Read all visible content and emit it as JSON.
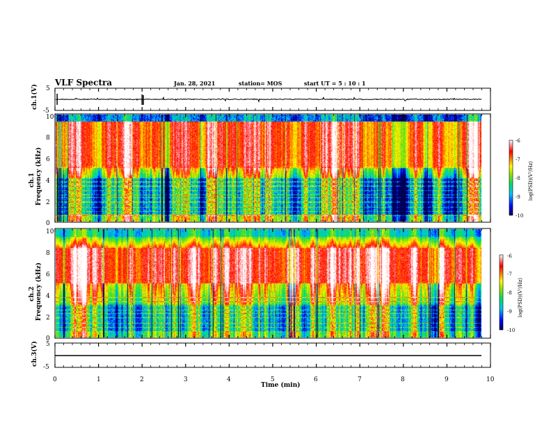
{
  "header": {
    "title": "VLF Spectra",
    "date": "Jan. 28, 2021",
    "station": "station= MOS",
    "start_ut": "start  UT  =   5  : 10 : 1"
  },
  "chart_data": {
    "type": "heatmap",
    "x": {
      "label": "Time  (min)",
      "range": [
        0,
        10
      ],
      "ticks": [
        "0",
        "1",
        "2",
        "3",
        "4",
        "5",
        "6",
        "7",
        "8",
        "9",
        "10"
      ]
    },
    "panels": [
      {
        "name": "ch.1(V)",
        "kind": "waveform",
        "ylabel": "ch.1(V)",
        "yrange": [
          -5,
          5
        ],
        "ticks": [
          "5",
          "-5"
        ]
      },
      {
        "name": "ch.1 spectrogram",
        "kind": "spectrogram",
        "ylabel": "ch.1\nFrequency  (kHz)",
        "yrange": [
          0,
          10
        ],
        "ticks": [
          "0",
          "2",
          "4",
          "6",
          "8",
          "10"
        ],
        "data_end_min": 9.8,
        "colorbar": {
          "label": "log(PSD)(V²/Hz)",
          "range": [
            -10,
            -6
          ],
          "ticks": [
            "-6",
            "-7",
            "-8",
            "-9",
            "-10"
          ]
        }
      },
      {
        "name": "ch.2 spectrogram",
        "kind": "spectrogram",
        "ylabel": "ch.2\nFrequency  (kHz)",
        "yrange": [
          0,
          10
        ],
        "ticks": [
          "0",
          "2",
          "4",
          "6",
          "8",
          "10"
        ],
        "data_end_min": 9.8,
        "colorbar": {
          "label": "log(PSD)(V²/Hz)",
          "range": [
            -10,
            -6
          ],
          "ticks": [
            "-6",
            "-7",
            "-8",
            "-9",
            "-10"
          ]
        }
      },
      {
        "name": "ch.3(V)",
        "kind": "waveform",
        "ylabel": "ch.3(V)",
        "yrange": [
          -5,
          5
        ],
        "ticks": [
          "5",
          "-5"
        ]
      }
    ],
    "colormap": [
      "#00004a",
      "#0000ff",
      "#00c0ff",
      "#00e060",
      "#80e000",
      "#ffff00",
      "#ff8000",
      "#ff0000",
      "#ffffff"
    ]
  }
}
